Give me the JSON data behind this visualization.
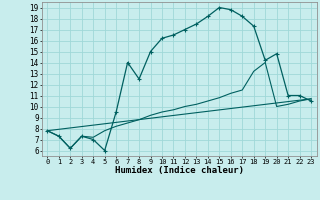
{
  "xlabel": "Humidex (Indice chaleur)",
  "bg_color": "#c8eded",
  "grid_color": "#a0d8d8",
  "line_color": "#006060",
  "xlim": [
    -0.5,
    23.5
  ],
  "ylim": [
    5.5,
    19.5
  ],
  "xticks": [
    0,
    1,
    2,
    3,
    4,
    5,
    6,
    7,
    8,
    9,
    10,
    11,
    12,
    13,
    14,
    15,
    16,
    17,
    18,
    19,
    20,
    21,
    22,
    23
  ],
  "yticks": [
    6,
    7,
    8,
    9,
    10,
    11,
    12,
    13,
    14,
    15,
    16,
    17,
    18,
    19
  ],
  "line1_x": [
    0,
    1,
    2,
    3,
    4,
    5,
    6,
    7,
    8,
    9,
    10,
    11,
    12,
    13,
    14,
    15,
    16,
    17,
    18,
    19,
    20,
    21,
    22,
    23
  ],
  "line1_y": [
    7.8,
    7.3,
    6.2,
    7.3,
    7.0,
    6.0,
    9.5,
    14.0,
    12.5,
    15.0,
    16.2,
    16.5,
    17.0,
    17.5,
    18.2,
    19.0,
    18.8,
    18.2,
    17.3,
    14.2,
    14.8,
    11.0,
    11.0,
    10.5
  ],
  "line2_x": [
    0,
    1,
    2,
    3,
    4,
    5,
    6,
    7,
    8,
    9,
    10,
    11,
    12,
    13,
    14,
    15,
    16,
    17,
    18,
    19,
    20,
    21,
    22,
    23
  ],
  "line2_y": [
    7.8,
    7.3,
    6.2,
    7.3,
    7.2,
    7.8,
    8.2,
    8.5,
    8.8,
    9.2,
    9.5,
    9.7,
    10.0,
    10.2,
    10.5,
    10.8,
    11.2,
    11.5,
    13.2,
    14.0,
    10.0,
    10.2,
    10.5,
    10.7
  ],
  "line3_x": [
    0,
    23
  ],
  "line3_y": [
    7.8,
    10.7
  ]
}
